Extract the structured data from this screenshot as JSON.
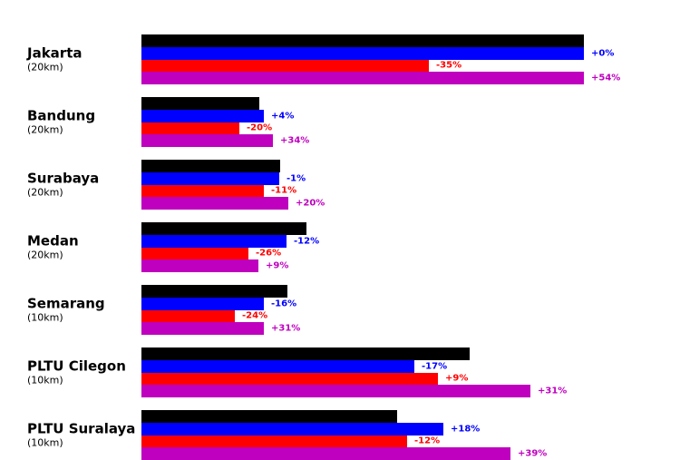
{
  "chart_data": {
    "type": "bar",
    "orientation": "horizontal",
    "grid": false,
    "axes_visible": false,
    "xlim": [
      0,
      122
    ],
    "value_scale_note": "relative units estimated from bar lengths; Jakarta black bar = 100; each bar label is % change vs the bar directly above it",
    "series_colors": {
      "black": "#000000",
      "blue": "#0000ff",
      "red": "#ff0000",
      "magenta": "#bf00bf"
    },
    "groups": [
      {
        "name": "Jakarta",
        "distance": "(20km)",
        "bars": [
          {
            "series": "black",
            "value": 100.0,
            "label": ""
          },
          {
            "series": "blue",
            "value": 100.0,
            "label": "+0%"
          },
          {
            "series": "red",
            "value": 65.0,
            "label": "-35%"
          },
          {
            "series": "magenta",
            "value": 100.0,
            "label": "+54%"
          }
        ]
      },
      {
        "name": "Bandung",
        "distance": "(20km)",
        "bars": [
          {
            "series": "black",
            "value": 26.6,
            "label": ""
          },
          {
            "series": "blue",
            "value": 27.6,
            "label": "+4%"
          },
          {
            "series": "red",
            "value": 22.1,
            "label": "-20%"
          },
          {
            "series": "magenta",
            "value": 29.7,
            "label": "+34%"
          }
        ]
      },
      {
        "name": "Surabaya",
        "distance": "(20km)",
        "bars": [
          {
            "series": "black",
            "value": 31.4,
            "label": ""
          },
          {
            "series": "blue",
            "value": 31.1,
            "label": "-1%"
          },
          {
            "series": "red",
            "value": 27.7,
            "label": "-11%"
          },
          {
            "series": "magenta",
            "value": 33.2,
            "label": "+20%"
          }
        ]
      },
      {
        "name": "Medan",
        "distance": "(20km)",
        "bars": [
          {
            "series": "black",
            "value": 37.2,
            "label": ""
          },
          {
            "series": "blue",
            "value": 32.7,
            "label": "-12%"
          },
          {
            "series": "red",
            "value": 24.2,
            "label": "-26%"
          },
          {
            "series": "magenta",
            "value": 26.4,
            "label": "+9%"
          }
        ]
      },
      {
        "name": "Semarang",
        "distance": "(10km)",
        "bars": [
          {
            "series": "black",
            "value": 33.0,
            "label": ""
          },
          {
            "series": "blue",
            "value": 27.7,
            "label": "-16%"
          },
          {
            "series": "red",
            "value": 21.1,
            "label": "-24%"
          },
          {
            "series": "magenta",
            "value": 27.6,
            "label": "+31%"
          }
        ]
      },
      {
        "name": "PLTU Cilegon",
        "distance": "(10km)",
        "bars": [
          {
            "series": "black",
            "value": 74.2,
            "label": ""
          },
          {
            "series": "blue",
            "value": 61.6,
            "label": "-17%"
          },
          {
            "series": "red",
            "value": 67.1,
            "label": "+9%"
          },
          {
            "series": "magenta",
            "value": 87.9,
            "label": "+31%"
          }
        ]
      },
      {
        "name": "PLTU Suralaya",
        "distance": "(10km)",
        "bars": [
          {
            "series": "black",
            "value": 57.8,
            "label": ""
          },
          {
            "series": "blue",
            "value": 68.2,
            "label": "+18%"
          },
          {
            "series": "red",
            "value": 60.0,
            "label": "-12%"
          },
          {
            "series": "magenta",
            "value": 83.4,
            "label": "+39%"
          }
        ]
      }
    ]
  }
}
